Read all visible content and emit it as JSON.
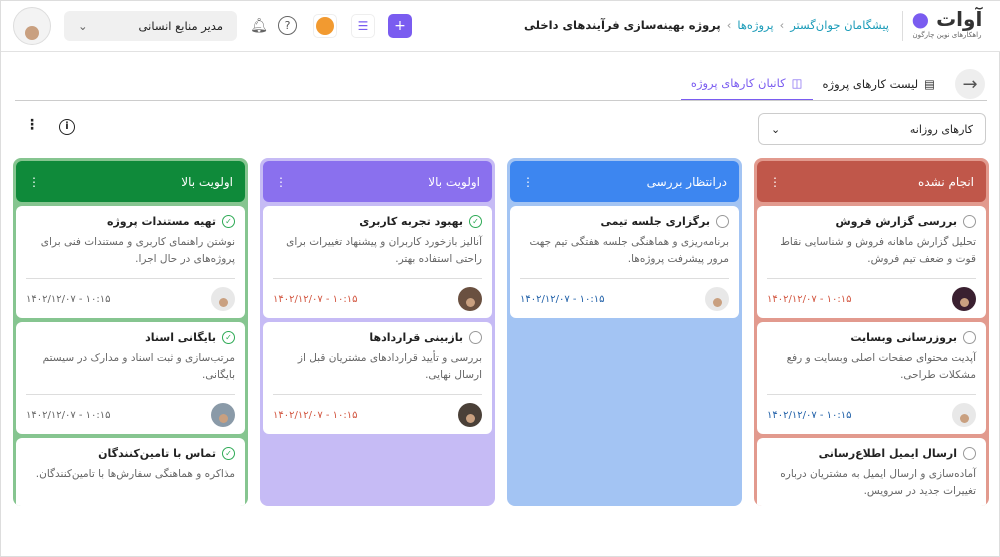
{
  "header": {
    "logo_text": "آوات",
    "logo_subtitle": "راهکارهای نوین چارگون",
    "breadcrumb": [
      "پیشگامان جوان‌گستر",
      "پروژه‌ها",
      "پروژه بهینه‌سازی فرآیندهای داخلی"
    ],
    "role": "مدیر منابع انسانی",
    "icons": [
      "plus-icon",
      "tasklist-icon",
      "inbox-icon",
      "help-icon",
      "bell-icon",
      "chevron-down-icon"
    ]
  },
  "tabs": [
    {
      "label": "لیست کارهای پروژه",
      "icon": "list-icon"
    },
    {
      "label": "کانبان کارهای پروژه",
      "icon": "kanban-icon",
      "active": true
    }
  ],
  "filter": {
    "selected": "کارهای روزانه"
  },
  "colors": {
    "accent": "#7a5cf0"
  },
  "columns": [
    {
      "title": "انجام نشده",
      "head": "#c0574a",
      "border": "#e29a8e",
      "date_color": "#d2553f",
      "cards": [
        {
          "title": "بررسی گزارش فروش",
          "desc": "تحلیل گزارش ماهانه فروش و شناسایی نقاط قوت و ضعف تیم فروش.",
          "date": "۱۴۰۲/۱۲/۰۷ - ۱۰:۱۵",
          "done": false,
          "avatar": "#3a2030"
        },
        {
          "title": "بروزرسانی وبسایت",
          "desc": "آپدیت محتوای صفحات اصلی وبسایت و رفع مشکلات طراحی.",
          "date": "۱۴۰۲/۱۲/۰۷ - ۱۰:۱۵",
          "done": false,
          "avatar": "#e8e8e8",
          "date_color": "#2060a8"
        },
        {
          "title": "ارسال ایمیل اطلاع‌رسانی",
          "desc": "آماده‌سازی و ارسال ایمیل به مشتریان درباره تغییرات جدید در سرویس.",
          "date": "",
          "done": false,
          "avatar": "#ddd"
        }
      ]
    },
    {
      "title": "درانتظار بررسی",
      "head": "#3d86f0",
      "border": "#a3c4f3",
      "date_color": "#2060a8",
      "cards": [
        {
          "title": "برگزاری جلسه تیمی",
          "desc": "برنامه‌ریزی و هماهنگی جلسه هفتگی تیم جهت مرور پیشرفت پروژه‌ها.",
          "date": "۱۴۰۲/۱۲/۰۷ - ۱۰:۱۵",
          "done": false,
          "avatar": "#e8e8e8"
        }
      ]
    },
    {
      "title": "اولویت بالا",
      "head": "#8a70ee",
      "border": "#c6bbf5",
      "date_color": "#d2553f",
      "cards": [
        {
          "title": "بهبود تجربه کاربری",
          "desc": "آنالیز بازخورد کاربران و پیشنهاد تغییرات برای راحتی استفاده بهتر.",
          "date": "۱۴۰۲/۱۲/۰۷ - ۱۰:۱۵",
          "done": true,
          "avatar": "#6a5040"
        },
        {
          "title": "بازبینی قراردادها",
          "desc": "بررسی و تأیید قراردادهای مشتریان قبل از ارسال نهایی.",
          "date": "۱۴۰۲/۱۲/۰۷ - ۱۰:۱۵",
          "done": false,
          "avatar": "#4a4038"
        }
      ]
    },
    {
      "title": "اولویت بالا",
      "head": "#0f8a3a",
      "border": "#86c590",
      "date_color": "#666666",
      "cards": [
        {
          "title": "تهیه مستندات پروژه",
          "desc": "نوشتن راهنمای کاربری و مستندات فنی برای پروژه‌های در حال اجرا.",
          "date": "۱۴۰۲/۱۲/۰۷ - ۱۰:۱۵",
          "done": true,
          "avatar": "#e8e8e8"
        },
        {
          "title": "بایگانی اسناد",
          "desc": "مرتب‌سازی و ثبت اسناد و مدارک در سیستم بایگانی.",
          "date": "۱۴۰۲/۱۲/۰۷ - ۱۰:۱۵",
          "done": true,
          "avatar": "#8a9aa8"
        },
        {
          "title": "تماس با تامین‌کنندگان",
          "desc": "مذاکره و هماهنگی سفارش‌ها با تامین‌کنندگان.",
          "date": "",
          "done": true,
          "avatar": "#333"
        }
      ]
    }
  ]
}
